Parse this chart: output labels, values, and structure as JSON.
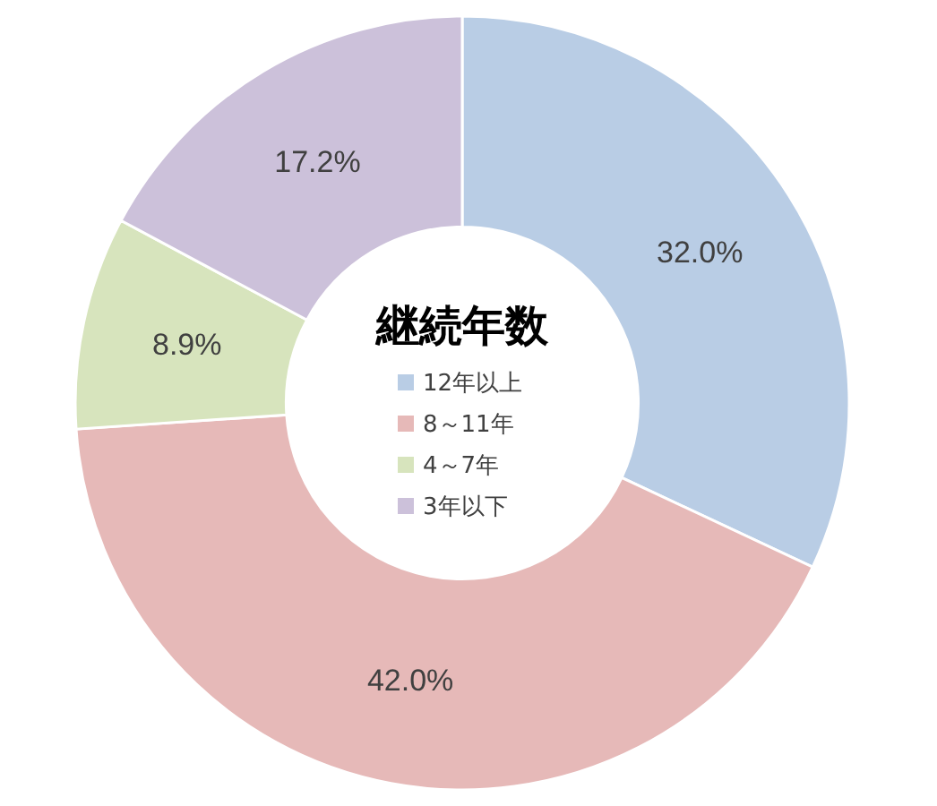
{
  "chart_data": {
    "type": "donut",
    "title": "継続年数",
    "categories": [
      "12年以上",
      "8～11年",
      "4～7年",
      "3年以下"
    ],
    "values": [
      32.0,
      42.0,
      8.9,
      17.2
    ],
    "colors": [
      "#b9cde5",
      "#e6b9b8",
      "#d7e4bd",
      "#ccc1da"
    ],
    "value_labels": [
      "32.0%",
      "42.0%",
      "8.9%",
      "17.2%"
    ],
    "legend": "center"
  }
}
